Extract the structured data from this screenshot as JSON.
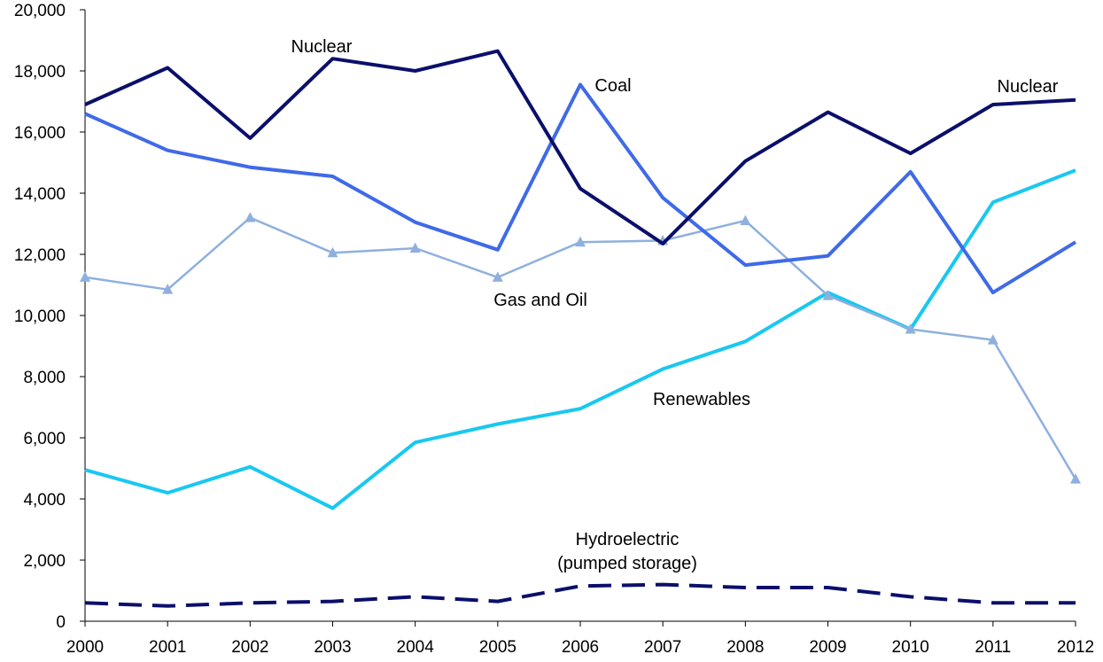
{
  "chart_data": {
    "type": "line",
    "title": "",
    "xlabel": "",
    "ylabel": "",
    "x": [
      "2000",
      "2001",
      "2002",
      "2003",
      "2004",
      "2005",
      "2006",
      "2007",
      "2008",
      "2009",
      "2010",
      "2011",
      "2012"
    ],
    "ylim": [
      0,
      20000
    ],
    "yticks": [
      0,
      2000,
      4000,
      6000,
      8000,
      10000,
      12000,
      14000,
      16000,
      18000,
      20000
    ],
    "ytick_labels": [
      "0",
      "2,000",
      "4,000",
      "6,000",
      "8,000",
      "10,000",
      "12,000",
      "14,000",
      "16,000",
      "18,000",
      "20,000"
    ],
    "grid": false,
    "legend": "none (series labeled directly on plot)",
    "series": [
      {
        "name": "Nuclear",
        "color": "#0b0f6b",
        "style": "solid",
        "marker": "none",
        "values": [
          16900,
          18100,
          15800,
          18400,
          18000,
          18650,
          14150,
          12350,
          15050,
          16650,
          15300,
          16900,
          17050
        ]
      },
      {
        "name": "Coal",
        "color": "#3f6ae8",
        "style": "solid",
        "marker": "none",
        "values": [
          16600,
          15400,
          14850,
          14550,
          13050,
          12150,
          17550,
          13850,
          11650,
          11950,
          14700,
          10750,
          12400
        ]
      },
      {
        "name": "Gas and Oil",
        "color": "#8fb0de",
        "style": "solid",
        "marker": "triangle",
        "values": [
          11250,
          10850,
          13200,
          12050,
          12200,
          11250,
          12400,
          12450,
          13100,
          10650,
          9550,
          9200,
          4650
        ]
      },
      {
        "name": "Renewables",
        "color": "#19c8f0",
        "style": "solid",
        "marker": "none",
        "values": [
          4950,
          4200,
          5050,
          3700,
          5850,
          6450,
          6950,
          8250,
          9150,
          10750,
          9550,
          13700,
          14750
        ]
      },
      {
        "name": "Hydroelectric (pumped storage)",
        "color": "#0b0f6b",
        "style": "dashed",
        "marker": "none",
        "values": [
          600,
          500,
          600,
          650,
          800,
          650,
          1150,
          1200,
          1100,
          1100,
          800,
          600,
          600
        ]
      }
    ],
    "annotations": [
      {
        "id": "nuclear-left",
        "text": "Nuclear"
      },
      {
        "id": "coal",
        "text": "Coal"
      },
      {
        "id": "nuclear-right",
        "text": "Nuclear"
      },
      {
        "id": "gas-oil",
        "text": "Gas and Oil"
      },
      {
        "id": "renewables",
        "text": "Renewables"
      },
      {
        "id": "hydro-line1",
        "text": "Hydroelectric"
      },
      {
        "id": "hydro-line2",
        "text": "(pumped storage)"
      }
    ]
  }
}
